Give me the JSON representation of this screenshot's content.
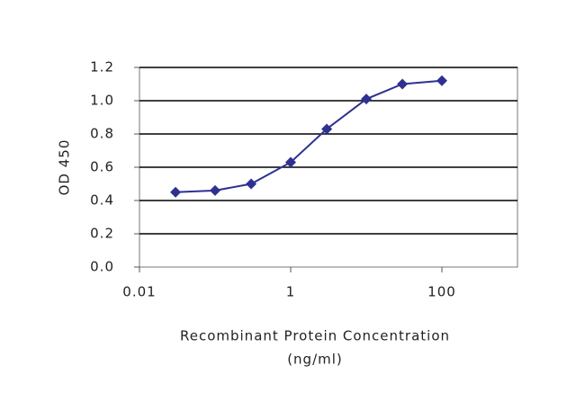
{
  "chart_data": {
    "type": "line",
    "x": [
      0.03,
      0.1,
      0.3,
      1,
      3,
      10,
      30,
      100
    ],
    "series": [
      {
        "color": "#2e3192",
        "values": [
          0.45,
          0.46,
          0.5,
          0.63,
          0.83,
          1.01,
          1.1,
          1.12
        ]
      }
    ],
    "xscale": "log",
    "xlim": [
      0.01,
      1000
    ],
    "xticks": [
      0.01,
      1,
      100
    ],
    "ylim": [
      0,
      1.2
    ],
    "yticks": [
      {
        "value": 0,
        "label": "0.0"
      },
      0.2,
      0.4,
      0.6,
      0.8,
      {
        "value": 1,
        "label": "1.0"
      },
      1.2
    ],
    "grid": true,
    "ylabel": "OD 450",
    "xlabel": [
      "Recombinant Protein Concentration",
      "(ng/ml)"
    ]
  }
}
